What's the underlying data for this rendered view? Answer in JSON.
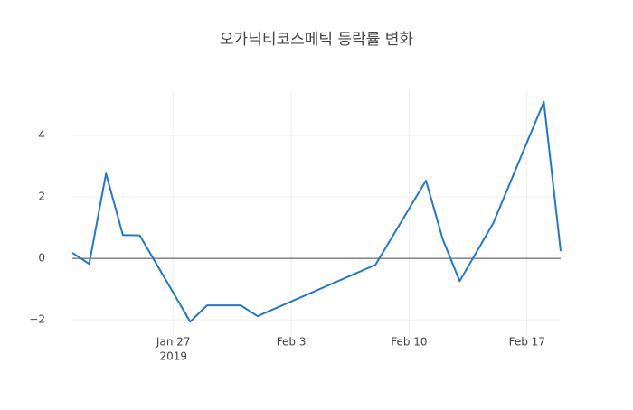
{
  "chart_data": {
    "type": "line",
    "title": "오가닉티코스메틱 등락률 변화",
    "x": [
      "2019-01-21",
      "2019-01-22",
      "2019-01-23",
      "2019-01-24",
      "2019-01-25",
      "2019-01-28",
      "2019-01-29",
      "2019-01-30",
      "2019-01-31",
      "2019-02-01",
      "2019-02-08",
      "2019-02-11",
      "2019-02-12",
      "2019-02-13",
      "2019-02-14",
      "2019-02-15",
      "2019-02-18",
      "2019-02-19"
    ],
    "series": [
      {
        "color": "#1f77d4",
        "values": [
          0.18,
          -0.18,
          2.76,
          0.76,
          0.75,
          -2.06,
          -1.53,
          -1.53,
          -1.53,
          -1.88,
          -0.21,
          2.53,
          0.62,
          -0.74,
          0.2,
          1.15,
          5.09,
          0.24
        ]
      }
    ],
    "xlim": [
      "2019-01-21",
      "2019-02-19"
    ],
    "xticks": [
      {
        "value": "2019-01-27",
        "label": "Jan 27",
        "sublabel": "2019"
      },
      {
        "value": "2019-02-03",
        "label": "Feb 3"
      },
      {
        "value": "2019-02-10",
        "label": "Feb 10"
      },
      {
        "value": "2019-02-17",
        "label": "Feb 17"
      }
    ],
    "ylim": [
      -2.76,
      5.47
    ],
    "yticks": [
      -2,
      0,
      2,
      4
    ],
    "grid": true
  }
}
